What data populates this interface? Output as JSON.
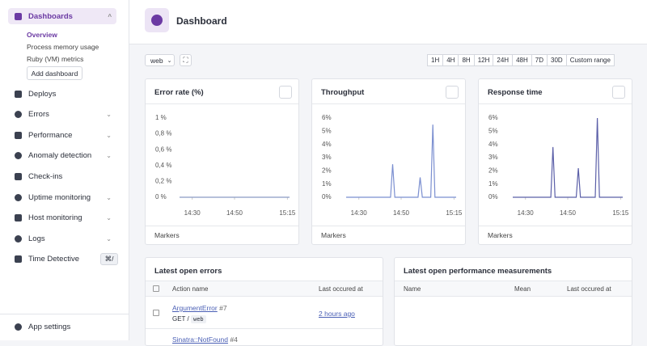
{
  "sidebar": {
    "active": {
      "label": "Dashboards",
      "items": [
        "Overview",
        "Process memory usage",
        "Ruby (VM) metrics"
      ],
      "button": "Add dashboard"
    },
    "items": [
      "Deploys",
      "Errors",
      "Performance",
      "Anomaly detection",
      "Check-ins",
      "Uptime monitoring",
      "Host monitoring",
      "Logs",
      "Time Detective"
    ],
    "shortcut": "⌘/",
    "footer": "App settings"
  },
  "header": {
    "title": "Dashboard"
  },
  "toolbar": {
    "namespace": "web",
    "ranges": [
      "1H",
      "4H",
      "8H",
      "12H",
      "24H",
      "48H",
      "7D",
      "30D"
    ],
    "custom": "Custom range"
  },
  "chart_data": [
    {
      "type": "line",
      "title": "Error rate (%)",
      "footer": "Markers",
      "x": [
        "14:24",
        "14:25",
        "14:26",
        "14:27",
        "14:28",
        "14:29",
        "14:30",
        "14:31",
        "14:32",
        "14:33",
        "14:34",
        "14:35",
        "14:36",
        "14:37",
        "14:38",
        "14:39",
        "14:40",
        "14:41",
        "14:42",
        "14:43",
        "14:44",
        "14:45",
        "14:46",
        "14:47",
        "14:48",
        "14:49",
        "14:50",
        "14:51",
        "14:52",
        "14:53",
        "14:54",
        "14:55",
        "14:56",
        "14:57",
        "14:58",
        "14:59",
        "15:00",
        "15:01",
        "15:02",
        "15:03",
        "15:04",
        "15:05",
        "15:06",
        "15:07",
        "15:08",
        "15:09",
        "15:10",
        "15:11",
        "15:12",
        "15:13",
        "15:14",
        "15:15",
        "15:16"
      ],
      "xticks": [
        "14:30",
        "14:50",
        "15:15"
      ],
      "ylim": [
        0,
        1
      ],
      "yticks": [
        {
          "value": 0,
          "label": "0 %"
        },
        {
          "value": 0.2,
          "label": "0,2 %"
        },
        {
          "value": 0.4,
          "label": "0,4 %"
        },
        {
          "value": 0.6,
          "label": "0,6 %"
        },
        {
          "value": 0.8,
          "label": "0,8 %"
        },
        {
          "value": 1,
          "label": "1 %"
        }
      ],
      "series": [
        {
          "color": "#8a9bc4",
          "values": [
            0,
            0,
            0,
            0,
            0,
            0,
            0,
            0,
            0,
            0,
            0,
            0,
            0,
            0,
            0,
            0,
            0,
            0,
            0,
            0,
            0,
            0,
            0,
            0,
            0,
            0,
            0,
            0,
            0,
            0,
            0,
            0,
            0,
            0,
            0,
            0,
            0,
            0,
            0,
            0,
            0,
            0,
            0,
            0,
            0,
            0,
            0,
            0,
            0,
            0,
            0,
            0,
            0
          ]
        }
      ]
    },
    {
      "type": "line",
      "title": "Throughput",
      "footer": "Markers",
      "x": [
        "14:24",
        "14:25",
        "14:26",
        "14:27",
        "14:28",
        "14:29",
        "14:30",
        "14:31",
        "14:32",
        "14:33",
        "14:34",
        "14:35",
        "14:36",
        "14:37",
        "14:38",
        "14:39",
        "14:40",
        "14:41",
        "14:42",
        "14:43",
        "14:44",
        "14:45",
        "14:46",
        "14:47",
        "14:48",
        "14:49",
        "14:50",
        "14:51",
        "14:52",
        "14:53",
        "14:54",
        "14:55",
        "14:56",
        "14:57",
        "14:58",
        "14:59",
        "15:00",
        "15:01",
        "15:02",
        "15:03",
        "15:04",
        "15:05",
        "15:06",
        "15:07",
        "15:08",
        "15:09",
        "15:10",
        "15:11",
        "15:12",
        "15:13",
        "15:14",
        "15:15",
        "15:16"
      ],
      "xticks": [
        "14:30",
        "14:50",
        "15:15"
      ],
      "ylim": [
        0,
        6
      ],
      "yticks": [
        {
          "value": 0,
          "label": "0%"
        },
        {
          "value": 1,
          "label": "1%"
        },
        {
          "value": 2,
          "label": "2%"
        },
        {
          "value": 3,
          "label": "3%"
        },
        {
          "value": 4,
          "label": "4%"
        },
        {
          "value": 5,
          "label": "5%"
        },
        {
          "value": 6,
          "label": "6%"
        }
      ],
      "series": [
        {
          "color": "#7b8fd0",
          "values": [
            0,
            0,
            0,
            0,
            0,
            0,
            0,
            0,
            0,
            0,
            0,
            0,
            0,
            0,
            0,
            0,
            0,
            0,
            0,
            0,
            0,
            0,
            2.5,
            0,
            0,
            0,
            0,
            0,
            0,
            0,
            0,
            0,
            0,
            0,
            0,
            1.5,
            0,
            0,
            0,
            0,
            0,
            5.5,
            0,
            0,
            0,
            0,
            0,
            0,
            0,
            0,
            0,
            0,
            0
          ]
        }
      ]
    },
    {
      "type": "line",
      "title": "Response time",
      "footer": "Markers",
      "x": [
        "14:24",
        "14:25",
        "14:26",
        "14:27",
        "14:28",
        "14:29",
        "14:30",
        "14:31",
        "14:32",
        "14:33",
        "14:34",
        "14:35",
        "14:36",
        "14:37",
        "14:38",
        "14:39",
        "14:40",
        "14:41",
        "14:42",
        "14:43",
        "14:44",
        "14:45",
        "14:46",
        "14:47",
        "14:48",
        "14:49",
        "14:50",
        "14:51",
        "14:52",
        "14:53",
        "14:54",
        "14:55",
        "14:56",
        "14:57",
        "14:58",
        "14:59",
        "15:00",
        "15:01",
        "15:02",
        "15:03",
        "15:04",
        "15:05",
        "15:06",
        "15:07",
        "15:08",
        "15:09",
        "15:10",
        "15:11",
        "15:12",
        "15:13",
        "15:14",
        "15:15",
        "15:16"
      ],
      "xticks": [
        "14:30",
        "14:50",
        "15:15"
      ],
      "ylim": [
        0,
        6
      ],
      "yticks": [
        {
          "value": 0,
          "label": "0%"
        },
        {
          "value": 1,
          "label": "1%"
        },
        {
          "value": 2,
          "label": "2%"
        },
        {
          "value": 3,
          "label": "3%"
        },
        {
          "value": 4,
          "label": "4%"
        },
        {
          "value": 5,
          "label": "5%"
        },
        {
          "value": 6,
          "label": "6%"
        }
      ],
      "series": [
        {
          "color": "#5b5fa8",
          "values": [
            0,
            0,
            0,
            0,
            0,
            0,
            0,
            0,
            0,
            0,
            0,
            0,
            0,
            0,
            0,
            0,
            0,
            0,
            0,
            3.8,
            0,
            0,
            0,
            0,
            0,
            0,
            0,
            0,
            0,
            0,
            0,
            2.2,
            0,
            0,
            0,
            0,
            0,
            0,
            0,
            0,
            6,
            0,
            0,
            0,
            0,
            0,
            0,
            0,
            0,
            0,
            0,
            0,
            0
          ]
        }
      ]
    }
  ],
  "errors": {
    "title": "Latest open errors",
    "columns": [
      "Action name",
      "Last occured at"
    ],
    "rows": [
      {
        "name": "ArgumentError",
        "count": "#7",
        "action": "GET /",
        "namespace": "web",
        "time": "2 hours ago"
      },
      {
        "name": "Sinatra::NotFound",
        "count": "#4"
      }
    ]
  },
  "performance": {
    "title": "Latest open performance measurements",
    "columns": [
      "Name",
      "Mean",
      "Last occured at"
    ]
  }
}
